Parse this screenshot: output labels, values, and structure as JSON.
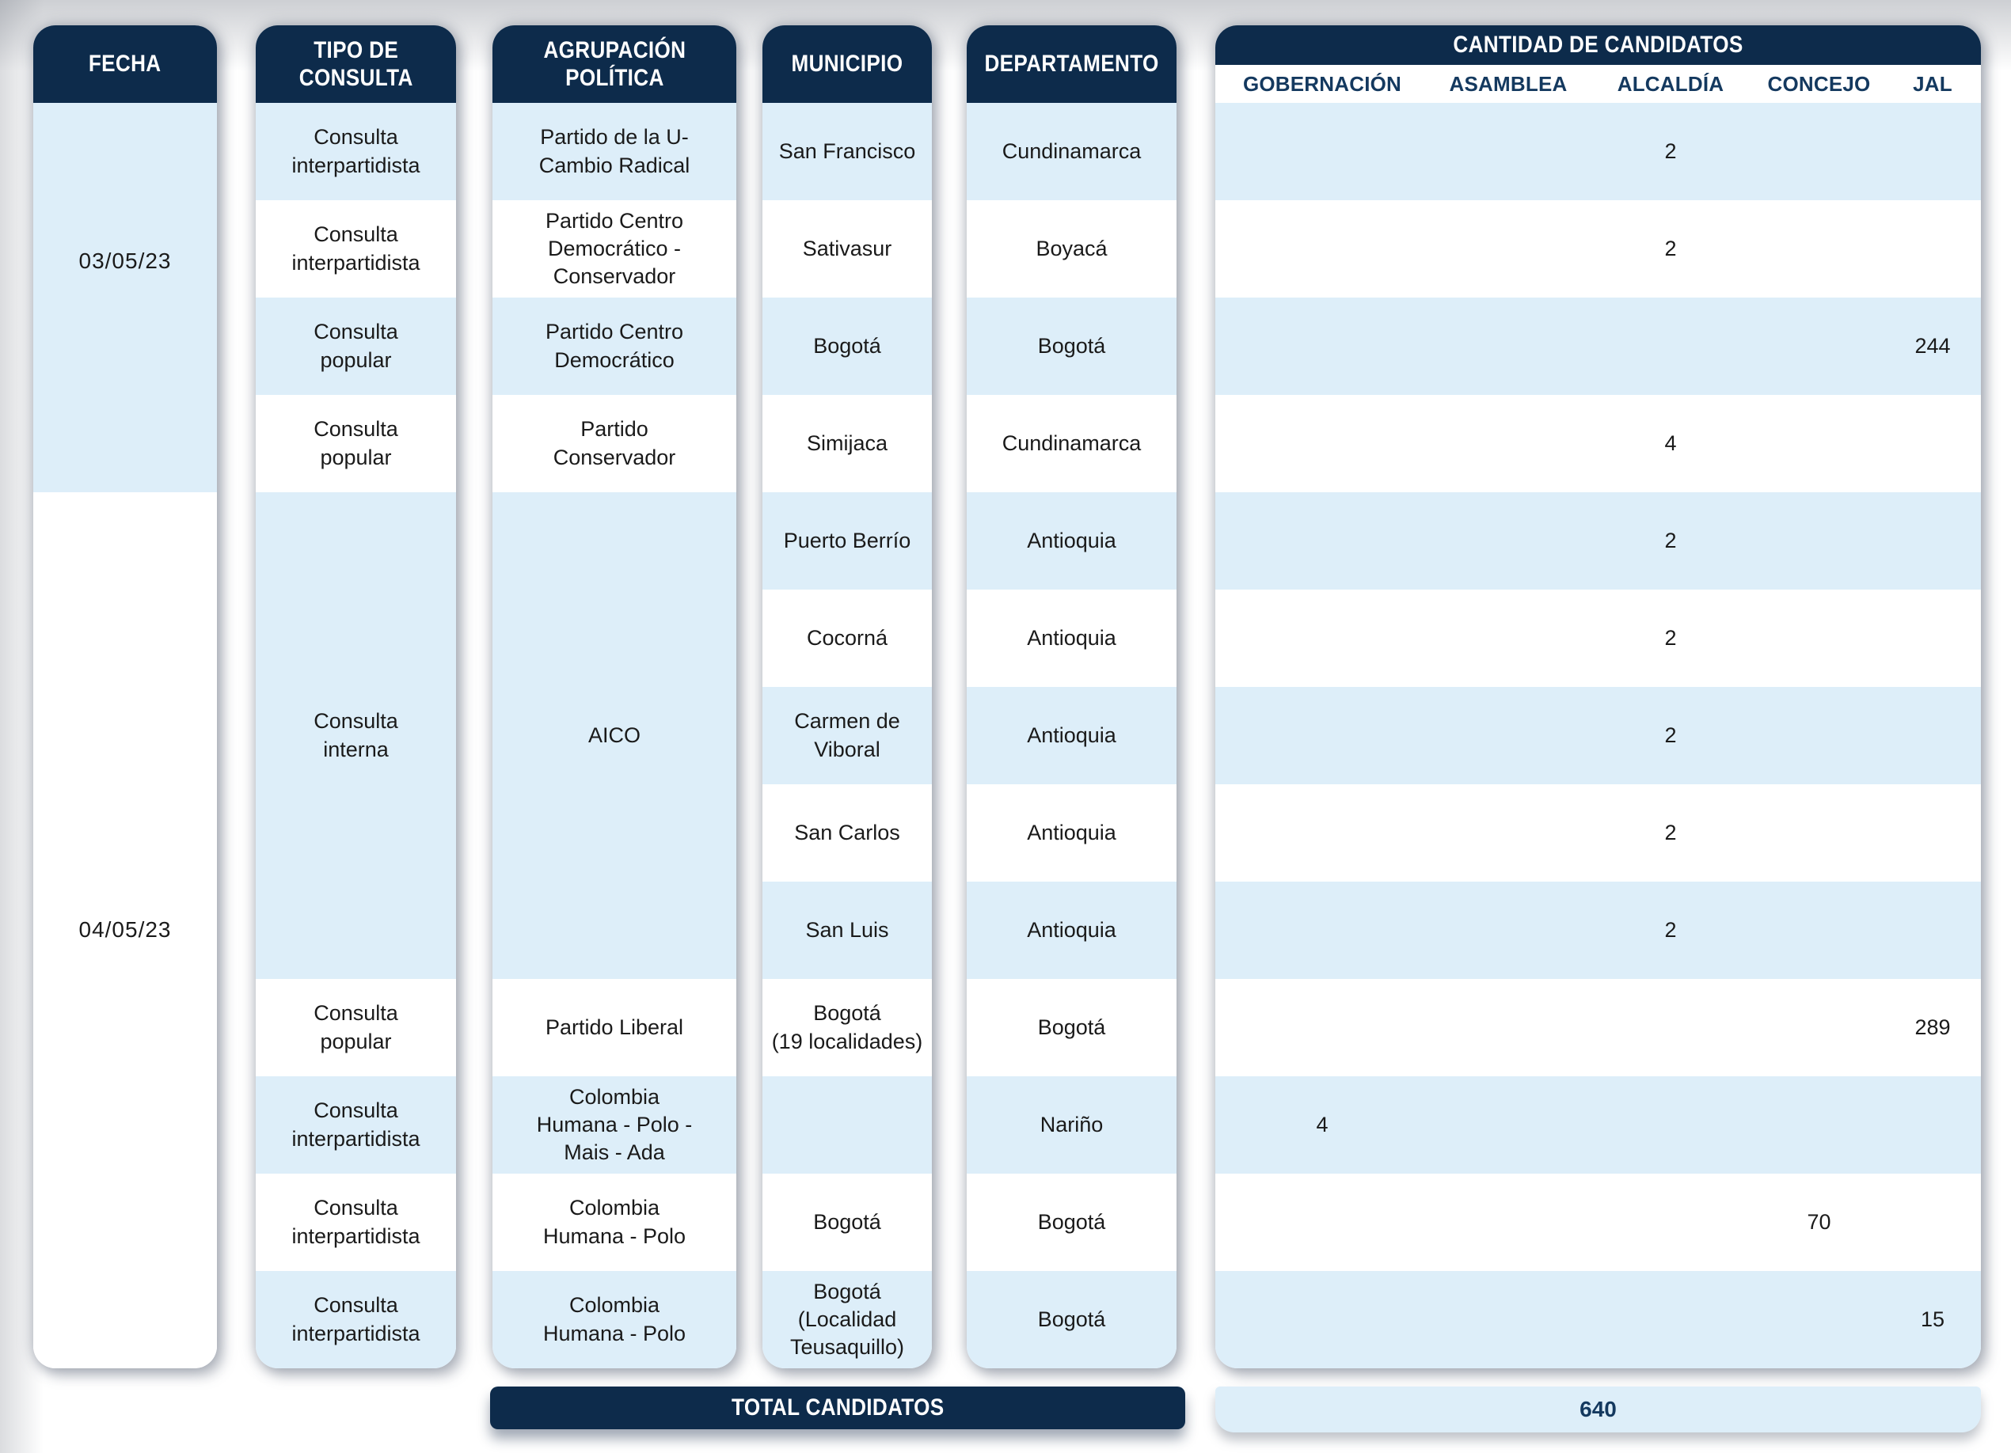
{
  "colors": {
    "header_navy": "#0D2B4B",
    "row_light_blue": "#DDEEF9",
    "row_white": "#FFFFFF",
    "subheader_text_navy": "#14395F",
    "body_text": "#1A1A1A"
  },
  "columns": [
    {
      "id": "fecha",
      "header": "FECHA",
      "cells": [
        {
          "text": "03/05/23",
          "span": 4,
          "bg": "blue"
        },
        {
          "text": "04/05/23",
          "span": 9,
          "bg": "white"
        }
      ]
    },
    {
      "id": "tipo_consulta",
      "header": "TIPO DE\nCONSULTA",
      "cells": [
        {
          "text": "Consulta\ninterpartidista",
          "span": 1,
          "bg": "blue"
        },
        {
          "text": "Consulta\ninterpartidista",
          "span": 1,
          "bg": "white"
        },
        {
          "text": "Consulta\npopular",
          "span": 1,
          "bg": "blue"
        },
        {
          "text": "Consulta\npopular",
          "span": 1,
          "bg": "white"
        },
        {
          "text": "Consulta\ninterna",
          "span": 5,
          "bg": "blue"
        },
        {
          "text": "Consulta\npopular",
          "span": 1,
          "bg": "white"
        },
        {
          "text": "Consulta\ninterpartidista",
          "span": 1,
          "bg": "blue"
        },
        {
          "text": "Consulta\ninterpartidista",
          "span": 1,
          "bg": "white"
        },
        {
          "text": "Consulta\ninterpartidista",
          "span": 1,
          "bg": "blue"
        }
      ]
    },
    {
      "id": "agrupacion_politica",
      "header": "AGRUPACIÓN\nPOLÍTICA",
      "cells": [
        {
          "text": "Partido de la U-\nCambio Radical",
          "span": 1,
          "bg": "blue"
        },
        {
          "text": "Partido Centro\nDemocrático -\nConservador",
          "span": 1,
          "bg": "white"
        },
        {
          "text": "Partido Centro\nDemocrático",
          "span": 1,
          "bg": "blue"
        },
        {
          "text": "Partido\nConservador",
          "span": 1,
          "bg": "white"
        },
        {
          "text": "AICO",
          "span": 5,
          "bg": "blue"
        },
        {
          "text": "Partido Liberal",
          "span": 1,
          "bg": "white"
        },
        {
          "text": "Colombia\nHumana - Polo -\nMais - Ada",
          "span": 1,
          "bg": "blue"
        },
        {
          "text": "Colombia\nHumana - Polo",
          "span": 1,
          "bg": "white"
        },
        {
          "text": "Colombia\nHumana - Polo",
          "span": 1,
          "bg": "blue"
        }
      ]
    },
    {
      "id": "municipio",
      "header": "MUNICIPIO",
      "cells": [
        {
          "text": "San Francisco",
          "span": 1,
          "bg": "blue"
        },
        {
          "text": "Sativasur",
          "span": 1,
          "bg": "white"
        },
        {
          "text": "Bogotá",
          "span": 1,
          "bg": "blue"
        },
        {
          "text": "Simijaca",
          "span": 1,
          "bg": "white"
        },
        {
          "text": "Puerto Berrío",
          "span": 1,
          "bg": "blue"
        },
        {
          "text": "Cocorná",
          "span": 1,
          "bg": "white"
        },
        {
          "text": "Carmen de\nViboral",
          "span": 1,
          "bg": "blue"
        },
        {
          "text": "San Carlos",
          "span": 1,
          "bg": "white"
        },
        {
          "text": "San Luis",
          "span": 1,
          "bg": "blue"
        },
        {
          "text": "Bogotá\n(19 localidades)",
          "span": 1,
          "bg": "white"
        },
        {
          "text": "",
          "span": 1,
          "bg": "blue"
        },
        {
          "text": "Bogotá",
          "span": 1,
          "bg": "white"
        },
        {
          "text": "Bogotá\n(Localidad\nTeusaquillo)",
          "span": 1,
          "bg": "blue"
        }
      ]
    },
    {
      "id": "departamento",
      "header": "DEPARTAMENTO",
      "cells": [
        {
          "text": "Cundinamarca",
          "span": 1,
          "bg": "blue"
        },
        {
          "text": "Boyacá",
          "span": 1,
          "bg": "white"
        },
        {
          "text": "Bogotá",
          "span": 1,
          "bg": "blue"
        },
        {
          "text": "Cundinamarca",
          "span": 1,
          "bg": "white"
        },
        {
          "text": "Antioquia",
          "span": 1,
          "bg": "blue"
        },
        {
          "text": "Antioquia",
          "span": 1,
          "bg": "white"
        },
        {
          "text": "Antioquia",
          "span": 1,
          "bg": "blue"
        },
        {
          "text": "Antioquia",
          "span": 1,
          "bg": "white"
        },
        {
          "text": "Antioquia",
          "span": 1,
          "bg": "blue"
        },
        {
          "text": "Bogotá",
          "span": 1,
          "bg": "white"
        },
        {
          "text": "Nariño",
          "span": 1,
          "bg": "blue"
        },
        {
          "text": "Bogotá",
          "span": 1,
          "bg": "white"
        },
        {
          "text": "Bogotá",
          "span": 1,
          "bg": "blue"
        }
      ]
    }
  ],
  "candidates_panel": {
    "title": "CANTIDAD DE CANDIDATOS",
    "subcolumns": [
      "GOBERNACIÓN",
      "ASAMBLEA",
      "ALCALDÍA",
      "CONCEJO",
      "JAL"
    ],
    "value_rows": [
      {
        "col": 2,
        "value": "2"
      },
      {
        "col": 2,
        "value": "2"
      },
      {
        "col": 4,
        "value": "244"
      },
      {
        "col": 2,
        "value": "4"
      },
      {
        "col": 2,
        "value": "2"
      },
      {
        "col": 2,
        "value": "2"
      },
      {
        "col": 2,
        "value": "2"
      },
      {
        "col": 2,
        "value": "2"
      },
      {
        "col": 2,
        "value": "2"
      },
      {
        "col": 4,
        "value": "289"
      },
      {
        "col": 0,
        "value": "4"
      },
      {
        "col": 3,
        "value": "70"
      },
      {
        "col": 4,
        "value": "15"
      }
    ],
    "total_value": "640"
  },
  "total_bar": {
    "label": "TOTAL CANDIDATOS"
  },
  "chart_data": {
    "type": "table",
    "title": "CANTIDAD DE CANDIDATOS",
    "columns": [
      "FECHA",
      "TIPO DE CONSULTA",
      "AGRUPACIÓN POLÍTICA",
      "MUNICIPIO",
      "DEPARTAMENTO",
      "GOBERNACIÓN",
      "ASAMBLEA",
      "ALCALDÍA",
      "CONCEJO",
      "JAL"
    ],
    "rows": [
      [
        "03/05/23",
        "Consulta interpartidista",
        "Partido de la U- Cambio Radical",
        "San Francisco",
        "Cundinamarca",
        null,
        null,
        2,
        null,
        null
      ],
      [
        "03/05/23",
        "Consulta interpartidista",
        "Partido Centro Democrático - Conservador",
        "Sativasur",
        "Boyacá",
        null,
        null,
        2,
        null,
        null
      ],
      [
        "03/05/23",
        "Consulta popular",
        "Partido Centro Democrático",
        "Bogotá",
        "Bogotá",
        null,
        null,
        null,
        null,
        244
      ],
      [
        "03/05/23",
        "Consulta popular",
        "Partido Conservador",
        "Simijaca",
        "Cundinamarca",
        null,
        null,
        4,
        null,
        null
      ],
      [
        "04/05/23",
        "Consulta interna",
        "AICO",
        "Puerto Berrío",
        "Antioquia",
        null,
        null,
        2,
        null,
        null
      ],
      [
        "04/05/23",
        "Consulta interna",
        "AICO",
        "Cocorná",
        "Antioquia",
        null,
        null,
        2,
        null,
        null
      ],
      [
        "04/05/23",
        "Consulta interna",
        "AICO",
        "Carmen de Viboral",
        "Antioquia",
        null,
        null,
        2,
        null,
        null
      ],
      [
        "04/05/23",
        "Consulta interna",
        "AICO",
        "San Carlos",
        "Antioquia",
        null,
        null,
        2,
        null,
        null
      ],
      [
        "04/05/23",
        "Consulta interna",
        "AICO",
        "San Luis",
        "Antioquia",
        null,
        null,
        2,
        null,
        null
      ],
      [
        "04/05/23",
        "Consulta popular",
        "Partido Liberal",
        "Bogotá (19 localidades)",
        "Bogotá",
        null,
        null,
        null,
        null,
        289
      ],
      [
        "04/05/23",
        "Consulta interpartidista",
        "Colombia Humana - Polo - Mais - Ada",
        "",
        "Nariño",
        4,
        null,
        null,
        null,
        null
      ],
      [
        "04/05/23",
        "Consulta interpartidista",
        "Colombia Humana - Polo",
        "Bogotá",
        "Bogotá",
        null,
        null,
        null,
        70,
        null
      ],
      [
        "04/05/23",
        "Consulta interpartidista",
        "Colombia Humana - Polo",
        "Bogotá (Localidad Teusaquillo)",
        "Bogotá",
        null,
        null,
        null,
        null,
        15
      ]
    ],
    "total_label": "TOTAL CANDIDATOS",
    "total": 640
  }
}
